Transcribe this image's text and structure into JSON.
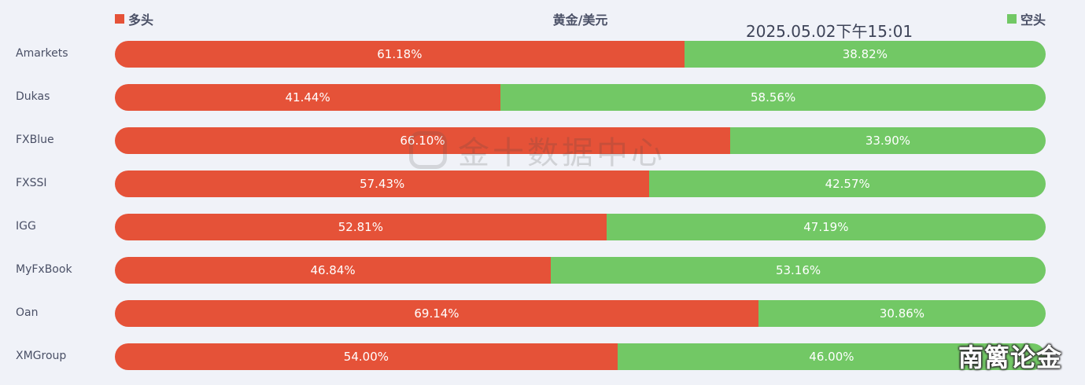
{
  "legend": {
    "long_label": "多头",
    "short_label": "空头"
  },
  "header": {
    "title": "黄金/美元",
    "timestamp": "2025.05.02下午15:01"
  },
  "watermark": {
    "text": "金十数据中心"
  },
  "brand": {
    "text": "南篱论金"
  },
  "colors": {
    "long": "#e55238",
    "short": "#72c865",
    "background": "#f0f2f8"
  },
  "chart_data": {
    "type": "bar",
    "orientation": "horizontal",
    "stacked": true,
    "normalized": true,
    "title": "黄金/美元",
    "categories": [
      "Amarkets",
      "Dukas",
      "FXBlue",
      "FXSSI",
      "IGG",
      "MyFxBook",
      "Oan",
      "XMGroup"
    ],
    "series": [
      {
        "name": "多头",
        "values": [
          61.18,
          41.44,
          66.1,
          57.43,
          52.81,
          46.84,
          69.14,
          54.0
        ],
        "labels": [
          "61.18%",
          "41.44%",
          "66.10%",
          "57.43%",
          "52.81%",
          "46.84%",
          "69.14%",
          "54.00%"
        ]
      },
      {
        "name": "空头",
        "values": [
          38.82,
          58.56,
          33.9,
          42.57,
          47.19,
          53.16,
          30.86,
          46.0
        ],
        "labels": [
          "38.82%",
          "58.56%",
          "33.90%",
          "42.57%",
          "47.19%",
          "53.16%",
          "30.86%",
          "46.00%"
        ]
      }
    ],
    "legend_position": "top",
    "grid": false
  }
}
